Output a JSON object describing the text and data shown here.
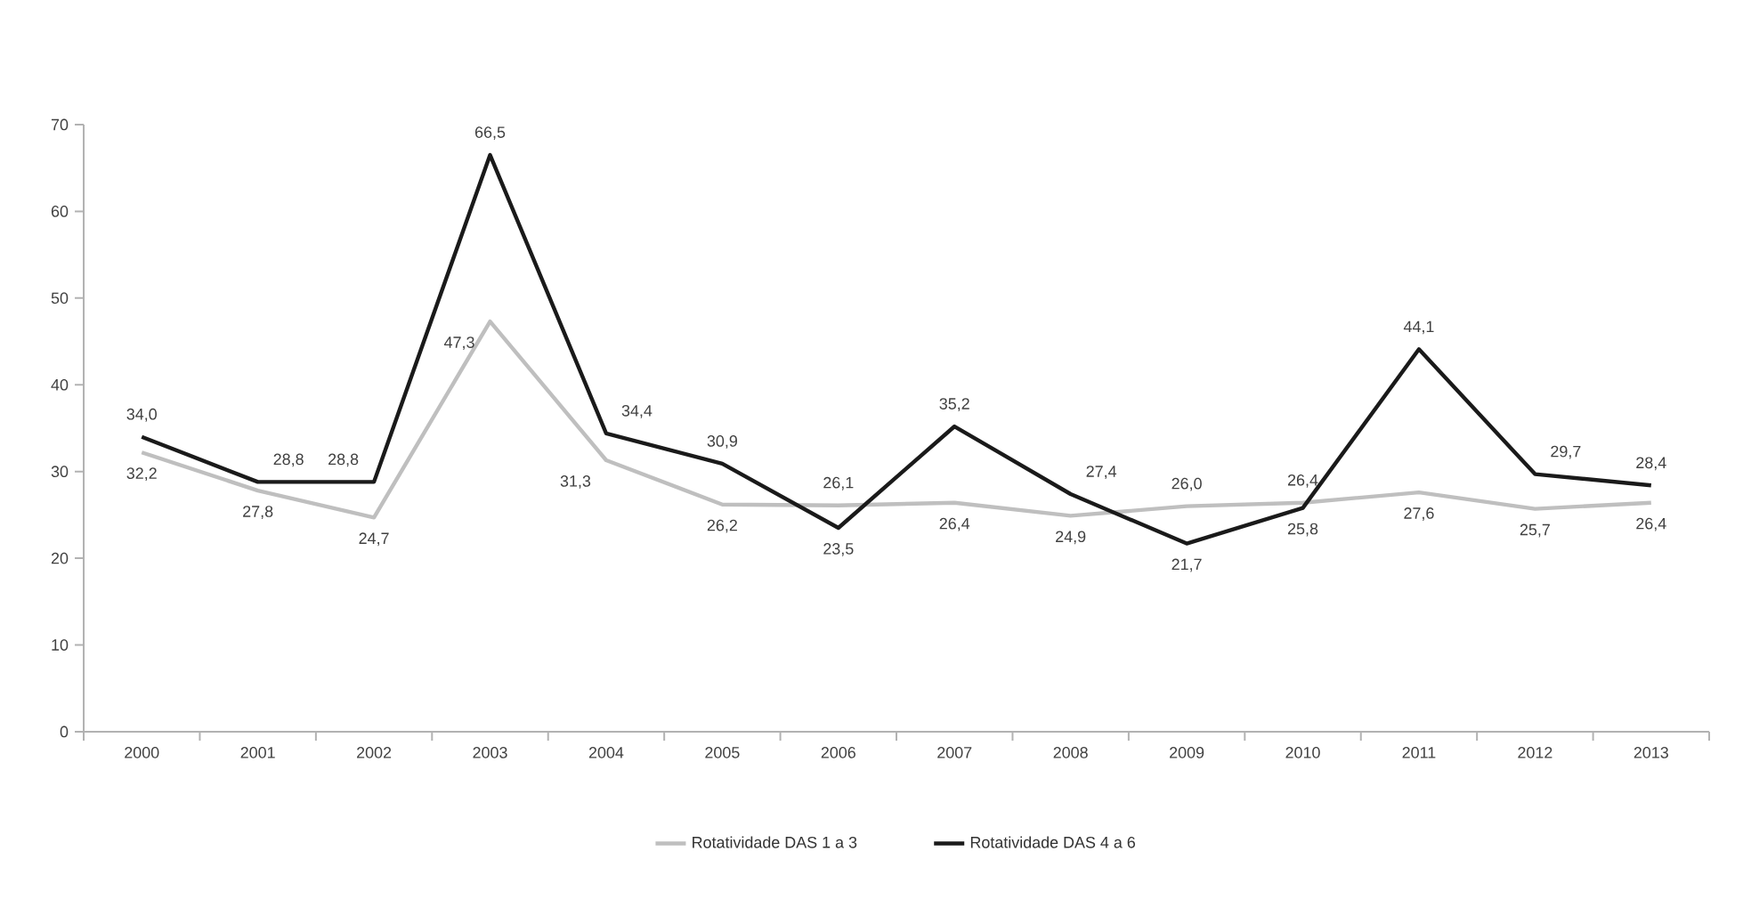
{
  "chart_data": {
    "type": "line",
    "categories": [
      "2000",
      "2001",
      "2002",
      "2003",
      "2004",
      "2005",
      "2006",
      "2007",
      "2008",
      "2009",
      "2010",
      "2011",
      "2012",
      "2013"
    ],
    "series": [
      {
        "name": "Rotatividade DAS 1 a 3",
        "color": "#bfbfbf",
        "values": [
          32.2,
          27.8,
          24.7,
          47.3,
          31.3,
          26.2,
          26.1,
          26.4,
          24.9,
          26.0,
          26.4,
          27.6,
          25.7,
          26.4
        ],
        "value_labels": [
          "32,2",
          "27,8",
          "24,7",
          "47,3",
          "31,3",
          "26,2",
          "26,1",
          "26,4",
          "24,9",
          "26,0",
          "26,4",
          "27,6",
          "25,7",
          "26,4"
        ]
      },
      {
        "name": "Rotatividade DAS 4 a 6",
        "color": "#1a1a1a",
        "values": [
          34.0,
          28.8,
          28.8,
          66.5,
          34.4,
          30.9,
          23.5,
          35.2,
          27.4,
          21.7,
          25.8,
          44.1,
          29.7,
          28.4
        ],
        "value_labels": [
          "34,0",
          "28,8",
          "28,8",
          "66,5",
          "34,4",
          "30,9",
          "23,5",
          "35,2",
          "27,4",
          "21,7",
          "25,8",
          "44,1",
          "29,7",
          "28,4"
        ]
      }
    ],
    "ylim": [
      0,
      70
    ],
    "yticks": [
      0,
      10,
      20,
      30,
      40,
      50,
      60,
      70
    ],
    "grid": false,
    "legend": "bottom",
    "marker": "none",
    "line_style": "solid"
  }
}
